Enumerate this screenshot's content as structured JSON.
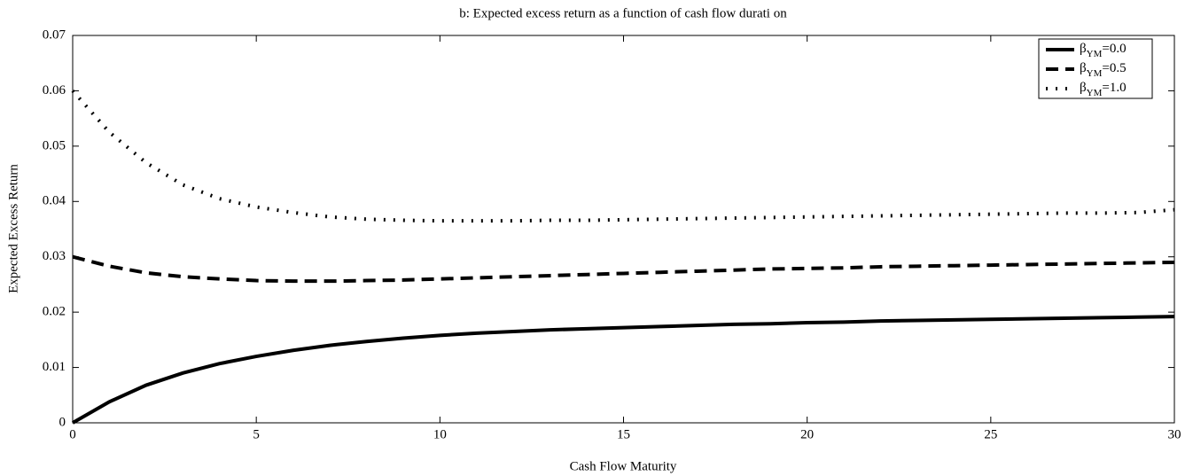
{
  "chart_data": {
    "type": "line",
    "title": "b: Expected excess return as a function of cash flow durati on",
    "xlabel": "Cash Flow Maturity",
    "ylabel": "Expected Excess Return",
    "x": [
      0,
      1,
      2,
      3,
      4,
      5,
      6,
      7,
      8,
      9,
      10,
      11,
      12,
      13,
      14,
      15,
      16,
      17,
      18,
      19,
      20,
      21,
      22,
      23,
      24,
      25,
      26,
      27,
      28,
      29,
      30
    ],
    "series": [
      {
        "name": "βYM=0.0",
        "color": "#000000",
        "dash": "solid",
        "values": [
          0,
          0.0038,
          0.0068,
          0.009,
          0.0107,
          0.012,
          0.0131,
          0.014,
          0.0147,
          0.0153,
          0.0158,
          0.0162,
          0.0165,
          0.0168,
          0.017,
          0.0172,
          0.0174,
          0.0176,
          0.0178,
          0.0179,
          0.0181,
          0.0182,
          0.0184,
          0.0185,
          0.0186,
          0.0187,
          0.0188,
          0.0189,
          0.019,
          0.0191,
          0.0192
        ]
      },
      {
        "name": "βYM=0.5",
        "color": "#000000",
        "dash": "dashed",
        "values": [
          0.03,
          0.0283,
          0.0271,
          0.0264,
          0.026,
          0.0257,
          0.0256,
          0.0256,
          0.0257,
          0.0258,
          0.026,
          0.0262,
          0.0264,
          0.0266,
          0.0268,
          0.027,
          0.0272,
          0.0274,
          0.0276,
          0.0278,
          0.0279,
          0.028,
          0.0282,
          0.0283,
          0.0284,
          0.0285,
          0.0286,
          0.0287,
          0.0288,
          0.0289,
          0.029
        ]
      },
      {
        "name": "βYM=1.0",
        "color": "#000000",
        "dash": "dotted",
        "values": [
          0.06,
          0.0525,
          0.047,
          0.043,
          0.0405,
          0.039,
          0.038,
          0.0372,
          0.0368,
          0.0366,
          0.0365,
          0.0365,
          0.0365,
          0.0366,
          0.0366,
          0.0367,
          0.0368,
          0.0369,
          0.037,
          0.0371,
          0.0372,
          0.0373,
          0.0374,
          0.0375,
          0.0376,
          0.0377,
          0.0378,
          0.0379,
          0.0379,
          0.038,
          0.0385
        ]
      }
    ],
    "xlim": [
      0,
      30
    ],
    "xticks": [
      0,
      5,
      10,
      15,
      20,
      25,
      30
    ],
    "ylim": [
      0,
      0.07
    ],
    "yticks": [
      0,
      0.01,
      0.02,
      0.03,
      0.04,
      0.05,
      0.06,
      0.07
    ],
    "grid": false,
    "legend": "upper right"
  }
}
